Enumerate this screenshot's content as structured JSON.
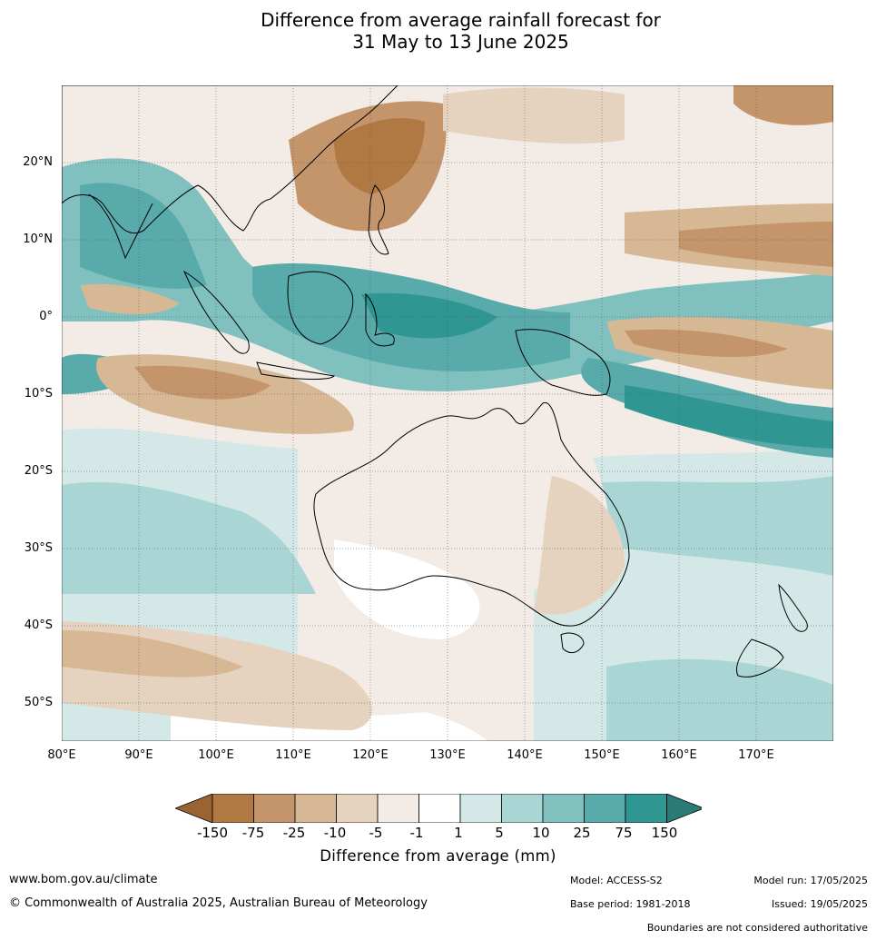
{
  "title": {
    "line1": "Difference from average rainfall forecast for",
    "line2": "31 May to 13 June 2025"
  },
  "map": {
    "lat_labels": [
      "20°N",
      "10°N",
      "0°",
      "10°S",
      "20°S",
      "30°S",
      "40°S",
      "50°S"
    ],
    "lon_labels": [
      "80°E",
      "90°E",
      "100°E",
      "110°E",
      "120°E",
      "130°E",
      "140°E",
      "150°E",
      "160°E",
      "170°E"
    ],
    "lat_range": [
      -55,
      30
    ],
    "lon_range": [
      80,
      180
    ]
  },
  "colorbar": {
    "ticks": [
      "-150",
      "-75",
      "-25",
      "-10",
      "-5",
      "-1",
      "1",
      "5",
      "10",
      "25",
      "75",
      "150"
    ],
    "colors": [
      "#9c6332",
      "#b07843",
      "#c4956a",
      "#d6b895",
      "#e5d2bf",
      "#f3ebe5",
      "#ffffff",
      "#d3e8e7",
      "#a9d6d4",
      "#80c1bf",
      "#58abaa",
      "#2f9691",
      "#2b7a76"
    ],
    "title": "Difference from average (mm)"
  },
  "footer": {
    "website": "www.bom.gov.au/climate",
    "copyright": "© Commonwealth of Australia 2025, Australian Bureau of Meteorology",
    "model": "Model: ACCESS-S2",
    "base_period": "Base period: 1981-2018",
    "model_run": "Model run: 17/05/2025",
    "issued": "Issued: 19/05/2025",
    "disclaimer": "Boundaries are not considered authoritative"
  }
}
